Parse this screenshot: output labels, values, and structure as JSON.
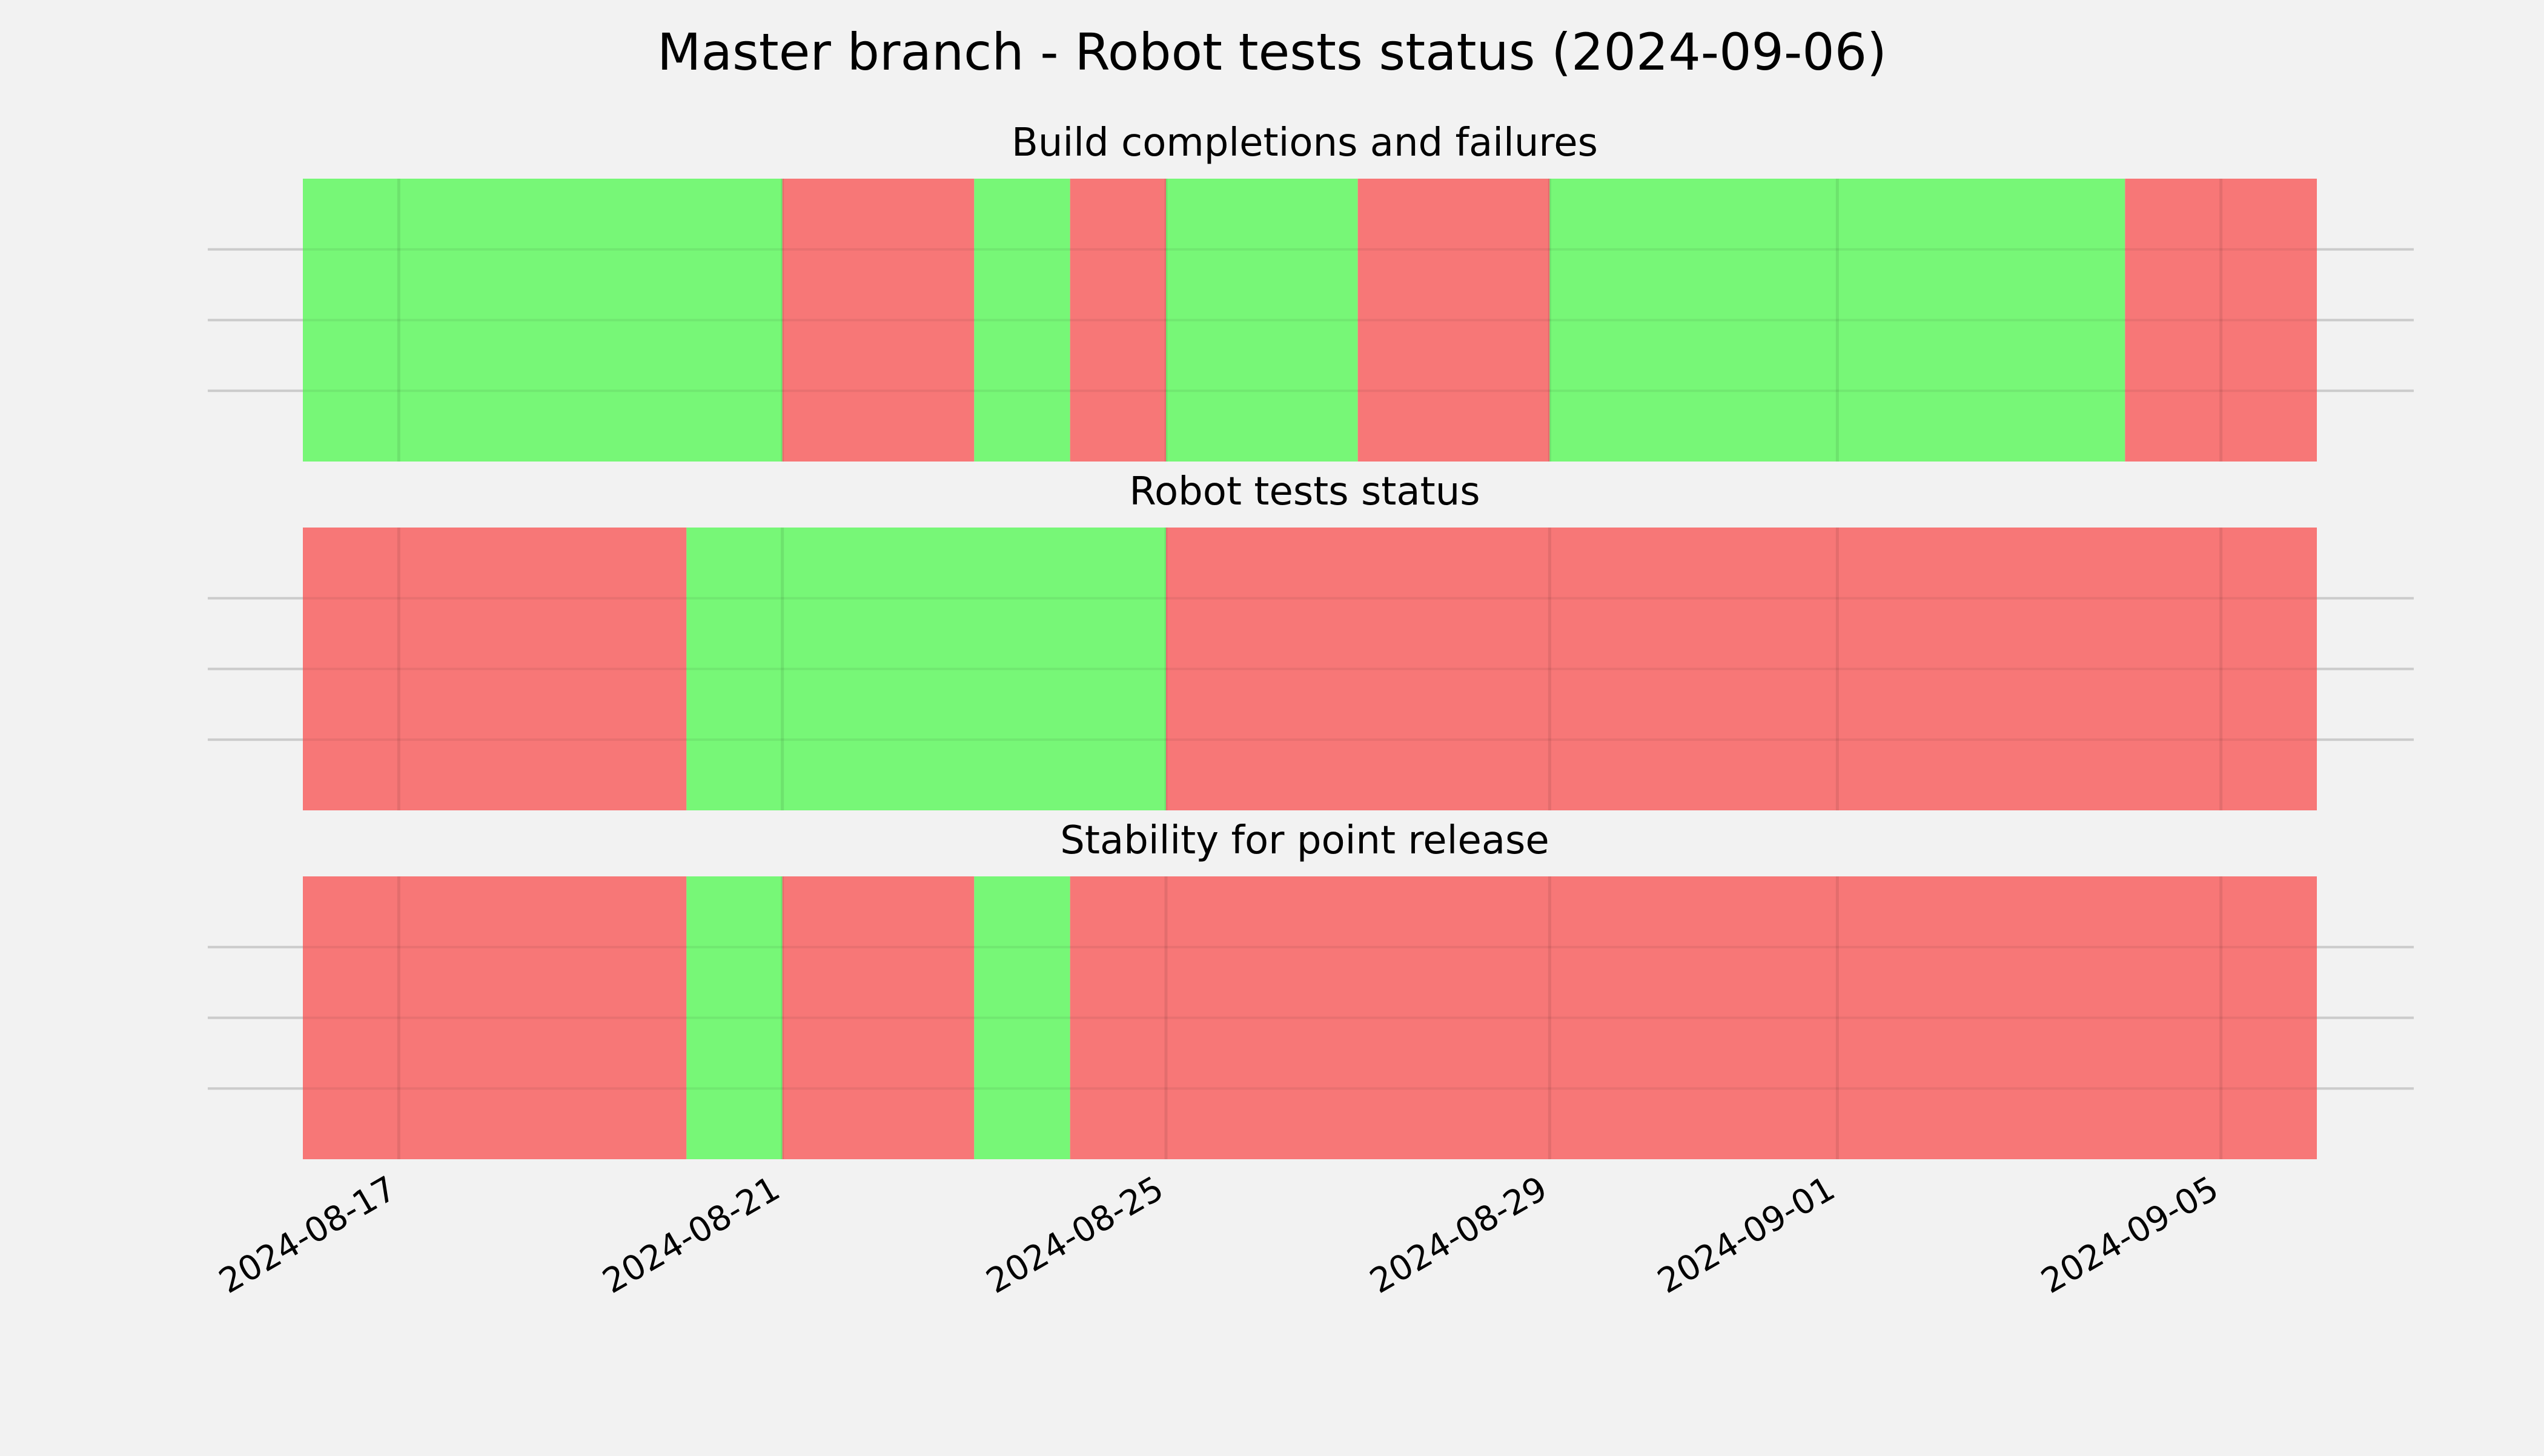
{
  "chart_data": {
    "type": "timeline",
    "title": "Master branch - Robot tests status (2024-09-06)",
    "x_range": [
      "2024-08-16",
      "2024-09-06"
    ],
    "x_ticks": [
      "2024-08-17",
      "2024-08-21",
      "2024-08-25",
      "2024-08-29",
      "2024-09-01",
      "2024-09-05"
    ],
    "grid": true,
    "colors": {
      "pass": "#77f777",
      "fail": "#f77777",
      "background": "#f2f2f2",
      "grid": "#cbcbcb"
    },
    "panels": [
      {
        "title": "Build completions and failures",
        "segments": [
          {
            "start": "2024-08-16",
            "end": "2024-08-21",
            "status": "pass"
          },
          {
            "start": "2024-08-21",
            "end": "2024-08-23",
            "status": "fail"
          },
          {
            "start": "2024-08-23",
            "end": "2024-08-24",
            "status": "pass"
          },
          {
            "start": "2024-08-24",
            "end": "2024-08-25",
            "status": "fail"
          },
          {
            "start": "2024-08-25",
            "end": "2024-08-27",
            "status": "pass"
          },
          {
            "start": "2024-08-27",
            "end": "2024-08-29",
            "status": "fail"
          },
          {
            "start": "2024-08-29",
            "end": "2024-09-04",
            "status": "pass"
          },
          {
            "start": "2024-09-04",
            "end": "2024-09-06",
            "status": "fail"
          }
        ]
      },
      {
        "title": "Robot tests status",
        "segments": [
          {
            "start": "2024-08-16",
            "end": "2024-08-20",
            "status": "fail"
          },
          {
            "start": "2024-08-20",
            "end": "2024-08-25",
            "status": "pass"
          },
          {
            "start": "2024-08-25",
            "end": "2024-09-06",
            "status": "fail"
          }
        ]
      },
      {
        "title": "Stability for point release",
        "segments": [
          {
            "start": "2024-08-16",
            "end": "2024-08-20",
            "status": "fail"
          },
          {
            "start": "2024-08-20",
            "end": "2024-08-21",
            "status": "pass"
          },
          {
            "start": "2024-08-21",
            "end": "2024-08-23",
            "status": "fail"
          },
          {
            "start": "2024-08-23",
            "end": "2024-08-24",
            "status": "pass"
          },
          {
            "start": "2024-08-24",
            "end": "2024-09-06",
            "status": "fail"
          }
        ]
      }
    ]
  }
}
